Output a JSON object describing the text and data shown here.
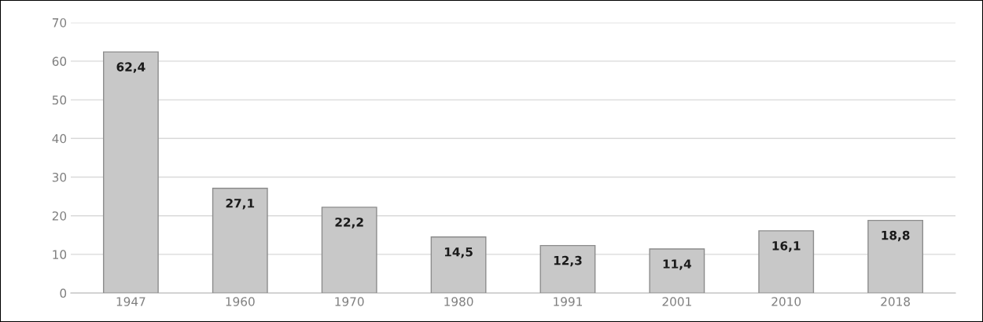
{
  "chart_data": {
    "type": "bar",
    "categories": [
      "1947",
      "1960",
      "1970",
      "1980",
      "1991",
      "2001",
      "2010",
      "2018"
    ],
    "values": [
      62.4,
      27.1,
      22.2,
      14.5,
      12.3,
      11.4,
      16.1,
      18.8
    ],
    "value_labels": [
      "62,4",
      "27,1",
      "22,2",
      "14,5",
      "12,3",
      "11,4",
      "16,1",
      "18,8"
    ],
    "color": "#c8c8c8",
    "ylim": [
      0,
      70
    ],
    "yticks": [
      0,
      10,
      20,
      30,
      40,
      50,
      60,
      70
    ],
    "grid": "y"
  }
}
